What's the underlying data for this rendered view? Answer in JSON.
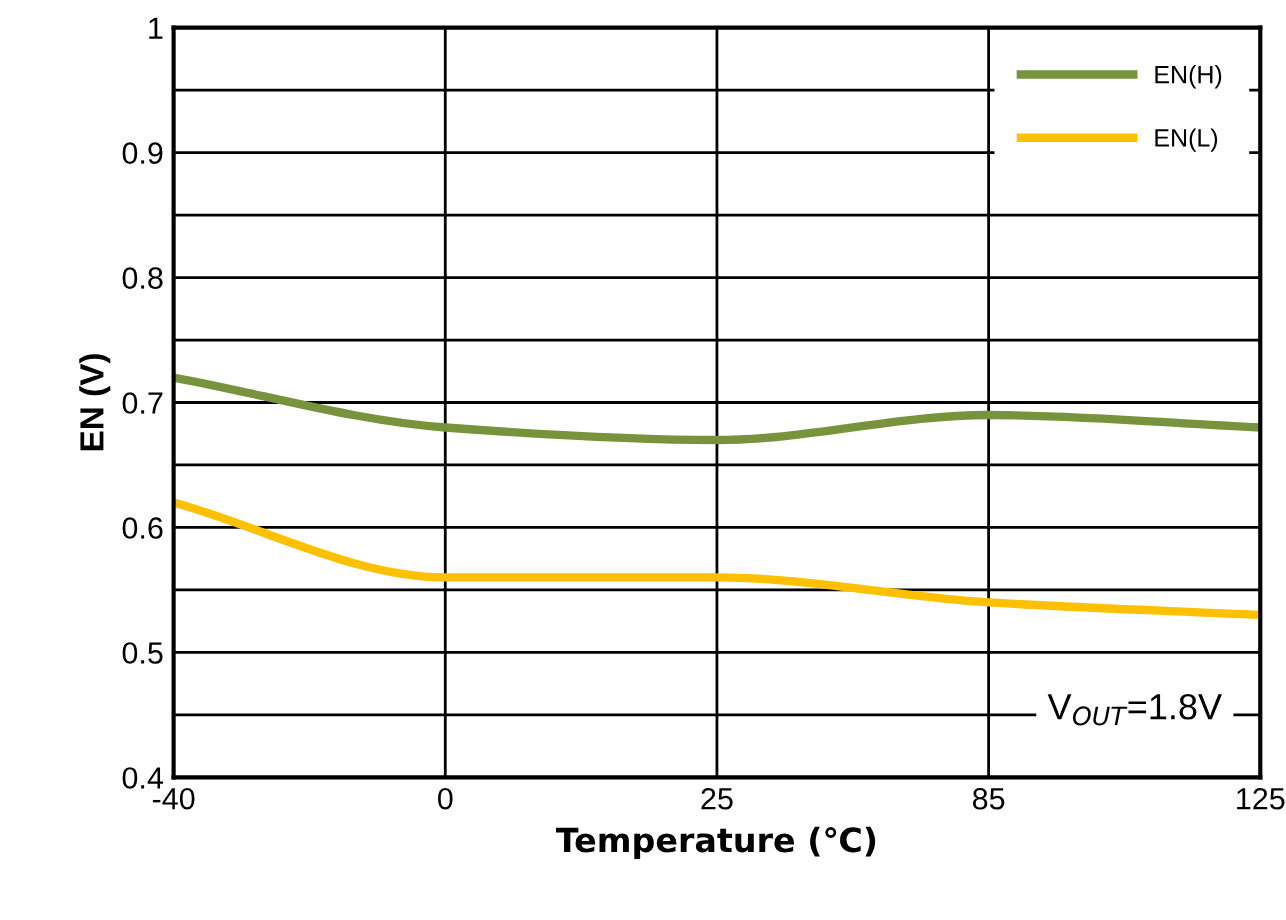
{
  "chart_data": {
    "type": "line",
    "xlabel": "Temperature (℃)",
    "ylabel": "EN (V)",
    "categories": [
      "-40",
      "0",
      "25",
      "85",
      "125"
    ],
    "series": [
      {
        "name": "EN(H)",
        "color": "#77933c",
        "values": [
          0.72,
          0.68,
          0.67,
          0.69,
          0.68
        ]
      },
      {
        "name": "EN(L)",
        "color": "#ffc000",
        "values": [
          0.62,
          0.56,
          0.56,
          0.54,
          0.53
        ]
      }
    ],
    "ylim": [
      0.4,
      1
    ],
    "yticks": [
      0.4,
      {
        "value": 0.45,
        "label": null
      },
      0.5,
      {
        "value": 0.55,
        "label": null
      },
      0.6,
      {
        "value": 0.65,
        "label": null
      },
      0.7,
      {
        "value": 0.75,
        "label": null
      },
      0.8,
      {
        "value": 0.85,
        "label": null
      },
      0.9,
      {
        "value": 0.95,
        "label": null
      },
      1
    ],
    "grid": true,
    "legend": "top right",
    "marker": "none",
    "line_style": "solid",
    "annotations": [
      "V$_{OUT}$=1.8V"
    ]
  }
}
